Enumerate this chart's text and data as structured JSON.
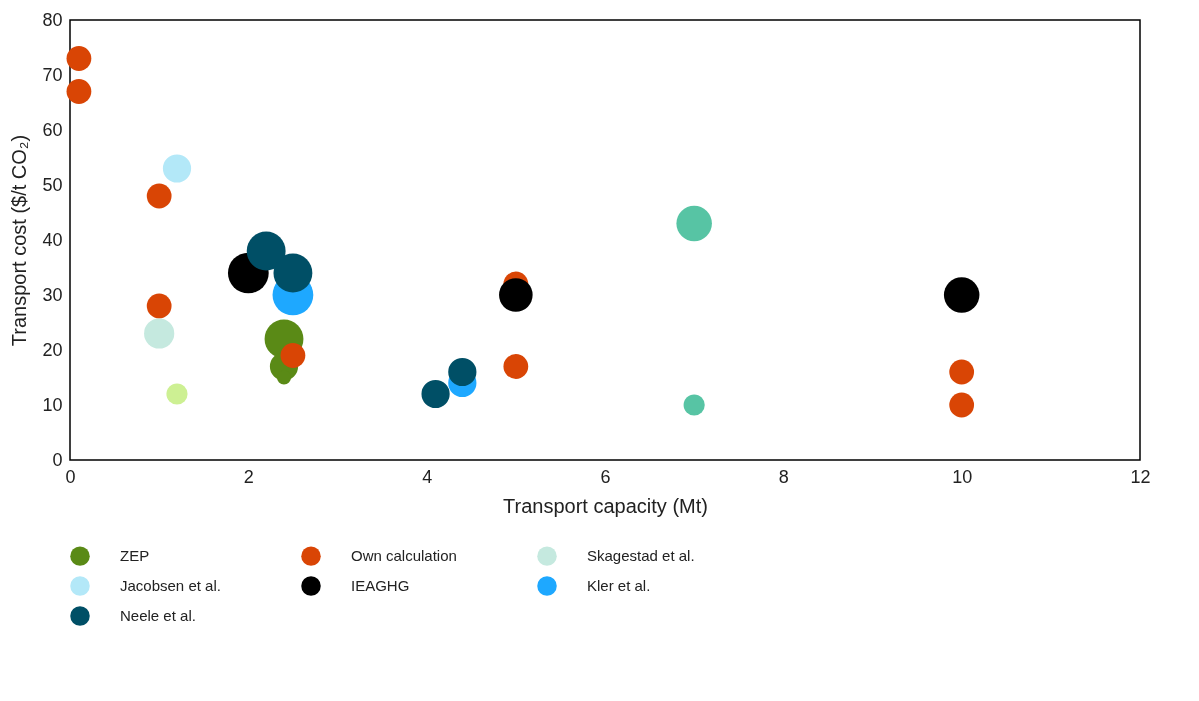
{
  "chart_data": {
    "type": "bubble",
    "xlabel": "Transport capacity (Mt)",
    "ylabel": "Transport cost ($/t CO₂)",
    "xlim": [
      0,
      12
    ],
    "ylim": [
      0,
      80
    ],
    "xticks": [
      0,
      2,
      4,
      6,
      8,
      10,
      12
    ],
    "yticks": [
      0,
      10,
      20,
      30,
      40,
      50,
      60,
      70,
      80
    ],
    "legend": "bottom",
    "series": [
      {
        "name": "ZEP",
        "color": "#5a8a16",
        "x": [
          2.4,
          2.4,
          2.4
        ],
        "values": [
          22,
          17,
          15
        ],
        "sizes": [
          0.91,
          0.48,
          0.12
        ]
      },
      {
        "name": "Own calculation",
        "color": "#d94505",
        "x": [
          0.1,
          0.1,
          1,
          1,
          2.5,
          5,
          5,
          10,
          10
        ],
        "values": [
          73,
          67,
          48,
          28,
          19,
          32,
          17,
          16,
          10
        ],
        "sizes": [
          0.37,
          0.37,
          0.37,
          0.37,
          0.37,
          0.37,
          0.37,
          0.37,
          0.37
        ]
      },
      {
        "name": "Skagestad et al.",
        "color": "#c5e9df",
        "x": [
          1
        ],
        "values": [
          23
        ],
        "sizes": [
          0.55
        ]
      },
      {
        "name": "Jacobsen et al.",
        "color": "#b3e8f8",
        "x": [
          1.2
        ],
        "values": [
          53
        ],
        "sizes": [
          0.48
        ]
      },
      {
        "color": "#cdf093",
        "x": [
          1.2
        ],
        "values": [
          12
        ],
        "sizes": [
          0.27
        ]
      },
      {
        "color": "#57c4a4",
        "x": [
          7,
          7
        ],
        "values": [
          43,
          10
        ],
        "sizes": [
          0.76,
          0.27
        ]
      },
      {
        "name": "IEAGHG",
        "color": "#000000",
        "x": [
          2,
          5,
          10
        ],
        "values": [
          34,
          30,
          30
        ],
        "sizes": [
          1,
          0.68,
          0.76
        ]
      },
      {
        "name": "Kler et al.",
        "color": "#1ea8ff",
        "x": [
          2.5,
          4.4
        ],
        "values": [
          30,
          14
        ],
        "sizes": [
          1,
          0.48
        ]
      },
      {
        "name": "Neele et al.",
        "color": "#004f66",
        "x": [
          2.2,
          2.5,
          4.1,
          4.4
        ],
        "values": [
          38,
          34,
          12,
          16
        ],
        "sizes": [
          0.91,
          0.91,
          0.48,
          0.48
        ]
      }
    ]
  }
}
